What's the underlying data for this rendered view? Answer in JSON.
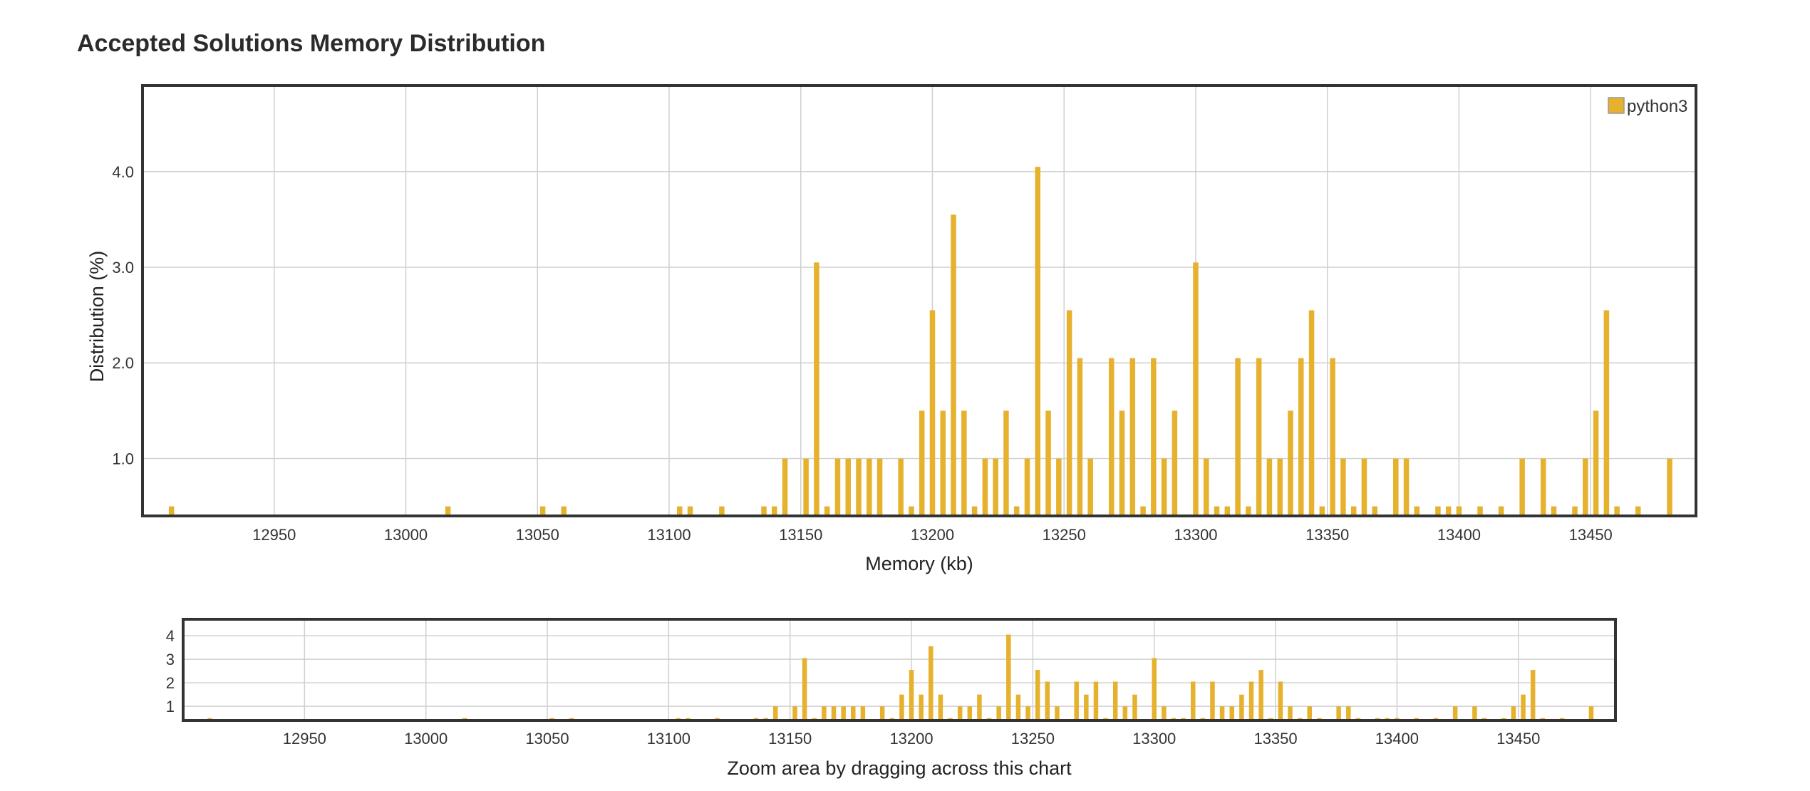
{
  "title": "Accepted Solutions Memory Distribution",
  "bar_color": "#e6b12c",
  "legend": {
    "label": "python3"
  },
  "overview": {
    "caption": "Zoom area by dragging across this chart"
  },
  "chart_data": {
    "type": "bar",
    "title": "Accepted Solutions Memory Distribution",
    "xlabel": "Memory (kb)",
    "ylabel": "Distribution (%)",
    "xlim": [
      12900,
      13490
    ],
    "ylim": [
      0.4,
      4.9
    ],
    "xticks": [
      12950,
      13000,
      13050,
      13100,
      13150,
      13200,
      13250,
      13300,
      13350,
      13400,
      13450
    ],
    "yticks": [
      1.0,
      2.0,
      3.0,
      4.0
    ],
    "grid": true,
    "legend_position": "top-right",
    "overview_yticks": [
      1,
      2,
      3,
      4
    ],
    "series": [
      {
        "name": "python3",
        "color": "#e6b12c",
        "points": [
          [
            12911,
            0.5
          ],
          [
            13016,
            0.5
          ],
          [
            13052,
            0.5
          ],
          [
            13060,
            0.5
          ],
          [
            13104,
            0.5
          ],
          [
            13108,
            0.5
          ],
          [
            13120,
            0.5
          ],
          [
            13136,
            0.5
          ],
          [
            13140,
            0.5
          ],
          [
            13144,
            1.0
          ],
          [
            13152,
            1.0
          ],
          [
            13156,
            3.05
          ],
          [
            13160,
            0.5
          ],
          [
            13164,
            1.0
          ],
          [
            13168,
            1.0
          ],
          [
            13172,
            1.0
          ],
          [
            13176,
            1.0
          ],
          [
            13180,
            1.0
          ],
          [
            13188,
            1.0
          ],
          [
            13192,
            0.5
          ],
          [
            13196,
            1.5
          ],
          [
            13200,
            2.55
          ],
          [
            13204,
            1.5
          ],
          [
            13208,
            3.55
          ],
          [
            13212,
            1.5
          ],
          [
            13216,
            0.5
          ],
          [
            13220,
            1.0
          ],
          [
            13224,
            1.0
          ],
          [
            13228,
            1.5
          ],
          [
            13232,
            0.5
          ],
          [
            13236,
            1.0
          ],
          [
            13240,
            4.05
          ],
          [
            13244,
            1.5
          ],
          [
            13248,
            1.0
          ],
          [
            13252,
            2.55
          ],
          [
            13256,
            2.05
          ],
          [
            13260,
            1.0
          ],
          [
            13268,
            2.05
          ],
          [
            13272,
            1.5
          ],
          [
            13276,
            2.05
          ],
          [
            13280,
            0.5
          ],
          [
            13284,
            2.05
          ],
          [
            13288,
            1.0
          ],
          [
            13292,
            1.5
          ],
          [
            13300,
            3.05
          ],
          [
            13304,
            1.0
          ],
          [
            13308,
            0.5
          ],
          [
            13312,
            0.5
          ],
          [
            13316,
            2.05
          ],
          [
            13320,
            0.5
          ],
          [
            13324,
            2.05
          ],
          [
            13328,
            1.0
          ],
          [
            13332,
            1.0
          ],
          [
            13336,
            1.5
          ],
          [
            13340,
            2.05
          ],
          [
            13344,
            2.55
          ],
          [
            13348,
            0.5
          ],
          [
            13352,
            2.05
          ],
          [
            13356,
            1.0
          ],
          [
            13360,
            0.5
          ],
          [
            13364,
            1.0
          ],
          [
            13368,
            0.5
          ],
          [
            13376,
            1.0
          ],
          [
            13380,
            1.0
          ],
          [
            13384,
            0.5
          ],
          [
            13392,
            0.5
          ],
          [
            13396,
            0.5
          ],
          [
            13400,
            0.5
          ],
          [
            13408,
            0.5
          ],
          [
            13416,
            0.5
          ],
          [
            13424,
            1.0
          ],
          [
            13432,
            1.0
          ],
          [
            13436,
            0.5
          ],
          [
            13444,
            0.5
          ],
          [
            13448,
            1.0
          ],
          [
            13452,
            1.5
          ],
          [
            13456,
            2.55
          ],
          [
            13460,
            0.5
          ],
          [
            13468,
            0.5
          ],
          [
            13480,
            1.0
          ]
        ]
      }
    ]
  }
}
